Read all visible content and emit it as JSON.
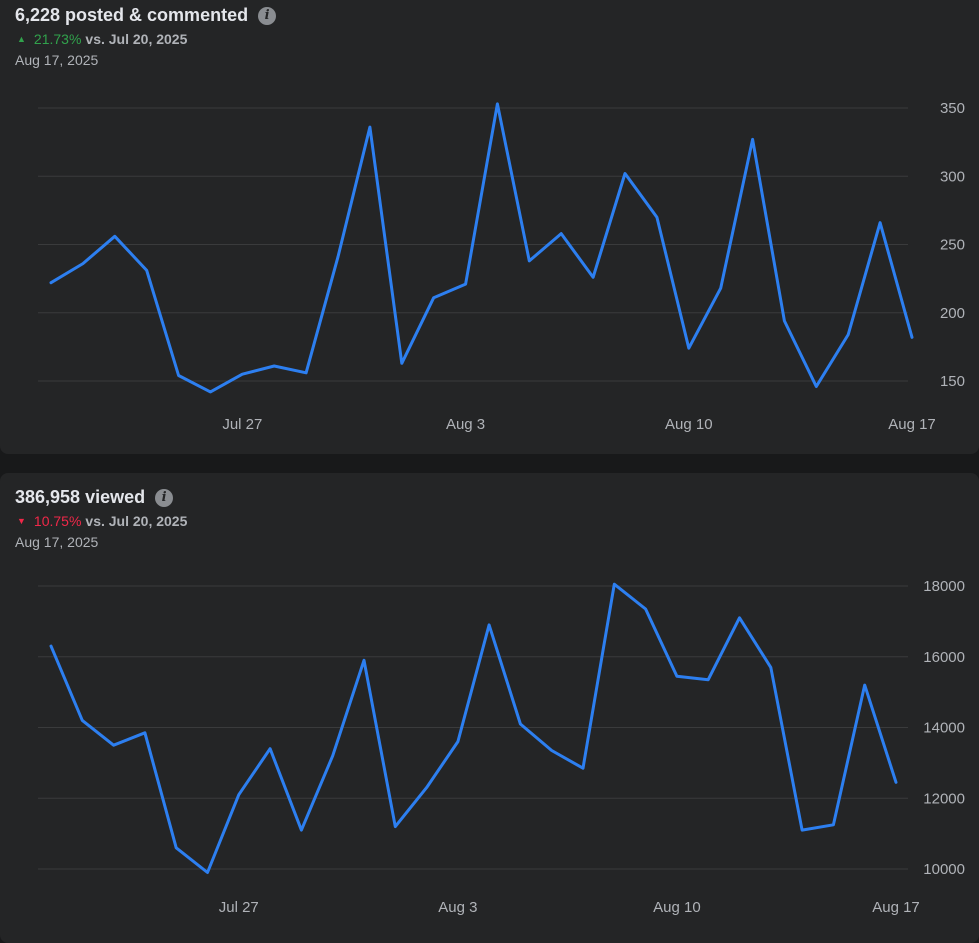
{
  "chart_data": [
    {
      "type": "line",
      "title": "6,228 posted & commented",
      "change": {
        "direction": "up",
        "percent": "21.73%",
        "label": "vs. Jul 20, 2025"
      },
      "date": "Aug 17, 2025",
      "x": [
        "Jul 21",
        "Jul 22",
        "Jul 23",
        "Jul 24",
        "Jul 25",
        "Jul 26",
        "Jul 27",
        "Jul 28",
        "Jul 29",
        "Jul 30",
        "Jul 31",
        "Aug 1",
        "Aug 2",
        "Aug 3",
        "Aug 4",
        "Aug 5",
        "Aug 6",
        "Aug 7",
        "Aug 8",
        "Aug 9",
        "Aug 10",
        "Aug 11",
        "Aug 12",
        "Aug 13",
        "Aug 14",
        "Aug 15",
        "Aug 16",
        "Aug 17"
      ],
      "series": [
        {
          "name": "posted & commented",
          "values": [
            222,
            236,
            256,
            231,
            154,
            142,
            155,
            161,
            156,
            241,
            336,
            163,
            211,
            221,
            353,
            238,
            258,
            226,
            302,
            270,
            174,
            218,
            327,
            194,
            146,
            184,
            266,
            182
          ]
        }
      ],
      "xticks": [
        "Jul 27",
        "Aug 3",
        "Aug 10",
        "Aug 17"
      ],
      "yticks": [
        150,
        200,
        250,
        300,
        350
      ],
      "ylim": [
        135,
        360
      ],
      "grid": true
    },
    {
      "type": "line",
      "title": "386,958 viewed",
      "change": {
        "direction": "down",
        "percent": "10.75%",
        "label": "vs. Jul 20, 2025"
      },
      "date": "Aug 17, 2025",
      "x": [
        "Jul 21",
        "Jul 22",
        "Jul 23",
        "Jul 24",
        "Jul 25",
        "Jul 26",
        "Jul 27",
        "Jul 28",
        "Jul 29",
        "Jul 30",
        "Jul 31",
        "Aug 1",
        "Aug 2",
        "Aug 3",
        "Aug 4",
        "Aug 5",
        "Aug 6",
        "Aug 7",
        "Aug 8",
        "Aug 9",
        "Aug 10",
        "Aug 11",
        "Aug 12",
        "Aug 13",
        "Aug 14",
        "Aug 15",
        "Aug 16",
        "Aug 17"
      ],
      "series": [
        {
          "name": "viewed",
          "values": [
            16300,
            14200,
            13500,
            13850,
            10600,
            9900,
            12100,
            13400,
            11100,
            13200,
            15900,
            11200,
            12300,
            13600,
            16900,
            14100,
            13350,
            12850,
            18050,
            17350,
            15450,
            15350,
            17100,
            15700,
            11100,
            11250,
            15200,
            12450
          ]
        }
      ],
      "xticks": [
        "Jul 27",
        "Aug 3",
        "Aug 10",
        "Aug 17"
      ],
      "yticks": [
        10000,
        12000,
        14000,
        16000,
        18000
      ],
      "ylim": [
        9500,
        18400
      ],
      "grid": true
    }
  ],
  "icons": {
    "info": "info-icon",
    "up_arrow": "caret-up-icon",
    "down_arrow": "caret-down-icon"
  },
  "info_glyph": "i",
  "arrow_up_glyph": "▲",
  "arrow_down_glyph": "▼",
  "colors": {
    "line": "#2d7ff0",
    "up": "#31a24c",
    "down": "#f02849",
    "card": "#242526",
    "background": "#18191a"
  }
}
